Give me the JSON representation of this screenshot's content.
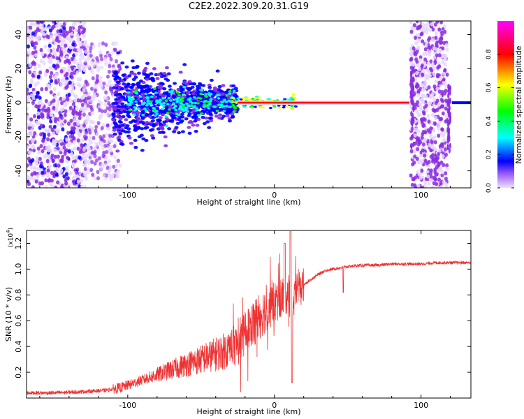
{
  "figure": {
    "title": "C2E2.2022.309.20.31.G19"
  },
  "chart_data": [
    {
      "type": "heatmap",
      "title": "C2E2.2022.309.20.31.G19",
      "xlabel": "Height of straight line (km)",
      "ylabel": "Frequency (Hz)",
      "xlim": [
        -169,
        134
      ],
      "ylim": [
        -50,
        48
      ],
      "x_ticks": [
        -100,
        0,
        100
      ],
      "y_ticks": [
        -40,
        -20,
        0,
        20,
        40
      ],
      "colorbar": {
        "label": "Normalized spectral amplitude",
        "range": [
          0,
          1
        ],
        "ticks": [
          0.0,
          0.2,
          0.4,
          0.6,
          0.8
        ],
        "colormap": [
          "#e6d6ff",
          "#8a2be2",
          "#0000ff",
          "#00ffff",
          "#00ff00",
          "#ffff00",
          "#ff0000",
          "#ff00ff"
        ]
      },
      "features": [
        {
          "x_range": [
            -169,
            -128
          ],
          "freq_range": [
            -50,
            48
          ],
          "amplitude": 0.15,
          "desc_key": "broad noise"
        },
        {
          "x_range": [
            -128,
            -105
          ],
          "freq_range": [
            -40,
            30
          ],
          "amplitude": 0.1
        },
        {
          "x_range": [
            -105,
            -30
          ],
          "freq_range": [
            -12,
            12
          ],
          "amplitude": 0.3
        },
        {
          "x_range": [
            -30,
            92
          ],
          "freq_center": 0,
          "amplitude": 0.95
        },
        {
          "x_range": [
            93,
            118
          ],
          "freq_range": [
            -50,
            48
          ],
          "amplitude": 0.12
        },
        {
          "x_range": [
            122,
            134
          ],
          "freq_center": 0,
          "amplitude": 0.3
        }
      ]
    },
    {
      "type": "line",
      "xlabel": "Height of straight line (km)",
      "ylabel": "SNR (10 * v/v)",
      "y_scale_label": "(x10",
      "y_scale_exp": "4",
      "y_scale_close": ")",
      "xlim": [
        -169,
        134
      ],
      "ylim": [
        0,
        1.3
      ],
      "x_ticks": [
        -100,
        0,
        100
      ],
      "y_ticks": [
        0.2,
        0.4,
        0.6,
        0.8,
        1.0,
        1.2
      ],
      "color": "#ee3333",
      "series": [
        {
          "x": [
            -169,
            -150,
            -130,
            -115,
            -105,
            -95,
            -85,
            -75,
            -65,
            -55,
            -45,
            -35,
            -25,
            -20,
            -15,
            -10,
            -5,
            0,
            5,
            10,
            12,
            15,
            20,
            25,
            30,
            35,
            40,
            45,
            50,
            60,
            70,
            80,
            90,
            100,
            110,
            120,
            134
          ],
          "y": [
            0.04,
            0.04,
            0.05,
            0.06,
            0.08,
            0.12,
            0.16,
            0.2,
            0.24,
            0.28,
            0.32,
            0.36,
            0.42,
            0.5,
            0.58,
            0.64,
            0.7,
            0.74,
            0.78,
            0.82,
            0.6,
            0.86,
            0.88,
            0.92,
            0.96,
            0.99,
            1.0,
            1.01,
            1.02,
            1.03,
            1.03,
            1.04,
            1.04,
            1.04,
            1.05,
            1.05,
            1.05
          ]
        }
      ]
    }
  ]
}
